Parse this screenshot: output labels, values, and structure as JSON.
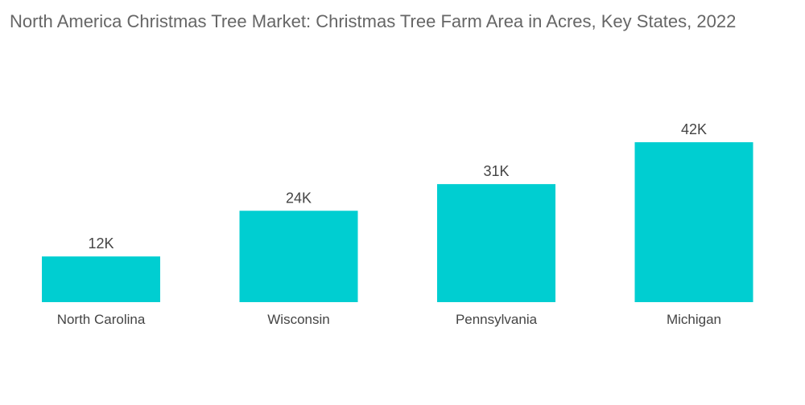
{
  "chart_data": {
    "type": "bar",
    "title": "North America Christmas Tree Market: Christmas Tree Farm Area in Acres, Key States, 2022",
    "categories": [
      "North Carolina",
      "Wisconsin",
      "Pennsylvania",
      "Michigan"
    ],
    "values": [
      12000,
      24000,
      31000,
      42000
    ],
    "data_labels": [
      "12K",
      "24K",
      "31K",
      "42K"
    ],
    "xlabel": "",
    "ylabel": "",
    "ylim": [
      0,
      42000
    ],
    "grid": false,
    "legend": "none",
    "bar_color": "#00CED1"
  }
}
